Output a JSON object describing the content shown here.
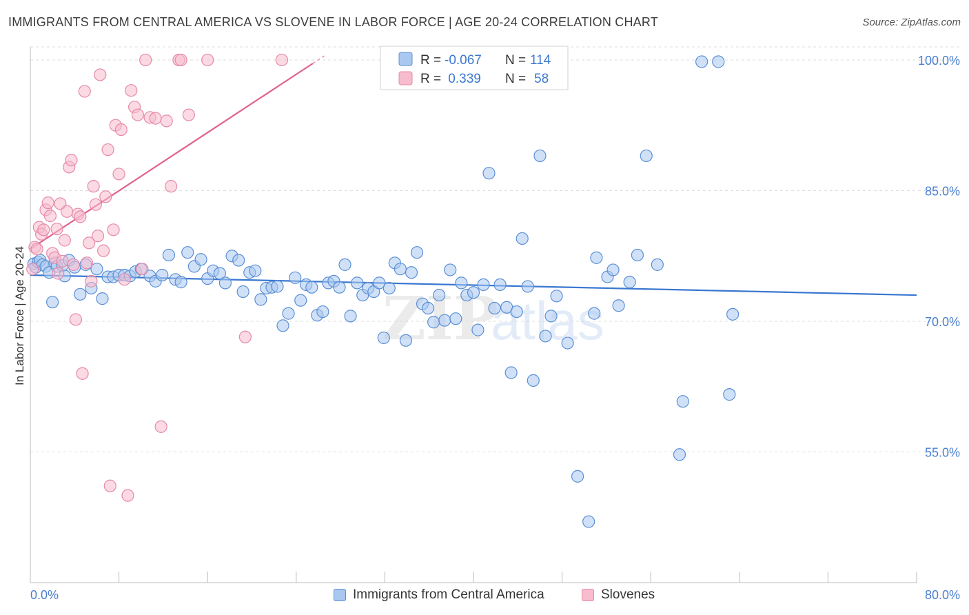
{
  "title": "IMMIGRANTS FROM CENTRAL AMERICA VS SLOVENE IN LABOR FORCE | AGE 20-24 CORRELATION CHART",
  "source": "Source: ZipAtlas.com",
  "watermark": {
    "zip": "ZIP",
    "atlas": "atlas"
  },
  "colors": {
    "blue_fill": "#a9c8f0",
    "blue_stroke": "#5b8fd6",
    "blue_line": "#3a78d0",
    "pink_fill": "#f7bccd",
    "pink_stroke": "#e58aa8",
    "pink_line": "#e0628e",
    "tick": "#4a7fd0",
    "grid": "#dddddd"
  },
  "legend_top": {
    "rows": [
      {
        "r_label": "R =",
        "r_value": "-0.067",
        "n_label": "N =",
        "n_value": "114"
      },
      {
        "r_label": "R =",
        "r_value": " 0.339",
        "n_label": "N =",
        "n_value": "58"
      }
    ]
  },
  "chart_data": {
    "type": "scatter",
    "title": "IMMIGRANTS FROM CENTRAL AMERICA VS SLOVENE IN LABOR FORCE | AGE 20-24 CORRELATION CHART",
    "xlabel": "",
    "ylabel": "In Labor Force | Age 20-24",
    "xlim": [
      0,
      80
    ],
    "ylim": [
      40,
      101.5
    ],
    "x_tick_labels": [
      "0.0%",
      "80.0%"
    ],
    "y_ticks": [
      100,
      85,
      70,
      55
    ],
    "y_tick_labels": [
      "100.0%",
      "85.0%",
      "70.0%",
      "55.0%"
    ],
    "grid": true,
    "legend_placement": "bottom-center",
    "series": [
      {
        "name": "Immigrants from Central America",
        "r": -0.067,
        "n": 114,
        "trend": {
          "x0": 0,
          "y0": 75.3,
          "x1": 80,
          "y1": 73.0
        },
        "points": [
          [
            0.3,
            76.6
          ],
          [
            0.5,
            76.2
          ],
          [
            0.7,
            76.8
          ],
          [
            0.9,
            77.0
          ],
          [
            1.1,
            76.5
          ],
          [
            1.4,
            76.3
          ],
          [
            1.7,
            75.6
          ],
          [
            2.0,
            72.2
          ],
          [
            2.2,
            76.7
          ],
          [
            2.4,
            76.3
          ],
          [
            2.9,
            76.4
          ],
          [
            3.1,
            75.2
          ],
          [
            3.5,
            77.0
          ],
          [
            4.0,
            76.2
          ],
          [
            4.5,
            73.1
          ],
          [
            5.0,
            76.5
          ],
          [
            5.5,
            73.8
          ],
          [
            6.0,
            76.0
          ],
          [
            6.5,
            72.6
          ],
          [
            7.0,
            75.1
          ],
          [
            7.5,
            75.1
          ],
          [
            8.0,
            75.3
          ],
          [
            8.5,
            75.3
          ],
          [
            9.0,
            75.2
          ],
          [
            9.5,
            75.7
          ],
          [
            10.0,
            76.0
          ],
          [
            10.8,
            75.2
          ],
          [
            11.3,
            74.6
          ],
          [
            11.9,
            75.3
          ],
          [
            12.5,
            77.6
          ],
          [
            13.1,
            74.8
          ],
          [
            13.6,
            74.5
          ],
          [
            14.2,
            77.9
          ],
          [
            14.8,
            76.3
          ],
          [
            15.4,
            77.1
          ],
          [
            16.0,
            74.9
          ],
          [
            16.5,
            75.8
          ],
          [
            17.1,
            75.5
          ],
          [
            17.6,
            74.4
          ],
          [
            18.2,
            77.5
          ],
          [
            18.8,
            77.0
          ],
          [
            19.2,
            73.4
          ],
          [
            19.8,
            75.6
          ],
          [
            20.3,
            75.8
          ],
          [
            20.8,
            72.5
          ],
          [
            21.3,
            73.8
          ],
          [
            21.8,
            73.9
          ],
          [
            22.3,
            74.0
          ],
          [
            22.8,
            69.5
          ],
          [
            23.3,
            70.9
          ],
          [
            23.9,
            75.0
          ],
          [
            24.4,
            72.4
          ],
          [
            24.9,
            74.2
          ],
          [
            25.4,
            73.9
          ],
          [
            25.9,
            70.7
          ],
          [
            26.4,
            71.1
          ],
          [
            26.9,
            74.4
          ],
          [
            27.4,
            74.6
          ],
          [
            27.9,
            73.9
          ],
          [
            28.4,
            76.5
          ],
          [
            28.9,
            70.6
          ],
          [
            29.5,
            74.4
          ],
          [
            30.0,
            73.0
          ],
          [
            30.5,
            73.8
          ],
          [
            31.0,
            73.4
          ],
          [
            31.5,
            74.4
          ],
          [
            31.9,
            68.1
          ],
          [
            32.4,
            73.8
          ],
          [
            32.9,
            76.7
          ],
          [
            33.4,
            76.0
          ],
          [
            33.9,
            67.8
          ],
          [
            34.4,
            75.6
          ],
          [
            34.9,
            77.9
          ],
          [
            35.4,
            72.0
          ],
          [
            35.9,
            71.5
          ],
          [
            36.4,
            69.9
          ],
          [
            36.9,
            73.0
          ],
          [
            37.4,
            70.1
          ],
          [
            37.9,
            75.9
          ],
          [
            38.4,
            70.3
          ],
          [
            38.9,
            74.4
          ],
          [
            39.4,
            73.0
          ],
          [
            40.0,
            73.3
          ],
          [
            40.4,
            69.0
          ],
          [
            40.9,
            74.2
          ],
          [
            41.4,
            87.0
          ],
          [
            41.9,
            71.5
          ],
          [
            42.4,
            74.2
          ],
          [
            43.0,
            71.6
          ],
          [
            43.4,
            64.1
          ],
          [
            43.9,
            71.1
          ],
          [
            44.4,
            79.5
          ],
          [
            44.9,
            74.0
          ],
          [
            45.4,
            63.2
          ],
          [
            46.0,
            89.0
          ],
          [
            46.5,
            68.3
          ],
          [
            47.0,
            70.6
          ],
          [
            47.5,
            72.9
          ],
          [
            47.9,
            99.8
          ],
          [
            48.5,
            67.5
          ],
          [
            49.4,
            52.2
          ],
          [
            50.4,
            47.0
          ],
          [
            50.9,
            70.9
          ],
          [
            51.1,
            77.3
          ],
          [
            52.1,
            75.1
          ],
          [
            52.6,
            75.9
          ],
          [
            53.1,
            71.8
          ],
          [
            54.1,
            74.5
          ],
          [
            54.8,
            77.6
          ],
          [
            55.6,
            89.0
          ],
          [
            56.6,
            76.5
          ],
          [
            58.6,
            54.7
          ],
          [
            58.9,
            60.8
          ],
          [
            60.6,
            99.8
          ],
          [
            62.1,
            99.8
          ],
          [
            63.1,
            61.6
          ],
          [
            63.4,
            70.8
          ]
        ]
      },
      {
        "name": "Slovenes",
        "r": 0.339,
        "n": 58,
        "trend": {
          "x0": 0,
          "y0": 78.3,
          "x1": 25.5,
          "y1": 99.6
        },
        "points": [
          [
            0.2,
            76.0
          ],
          [
            0.4,
            78.5
          ],
          [
            0.6,
            78.3
          ],
          [
            0.8,
            80.8
          ],
          [
            1.0,
            80.0
          ],
          [
            1.2,
            80.5
          ],
          [
            1.4,
            82.8
          ],
          [
            1.6,
            83.6
          ],
          [
            1.8,
            82.1
          ],
          [
            2.0,
            77.8
          ],
          [
            2.2,
            77.3
          ],
          [
            2.4,
            80.6
          ],
          [
            2.5,
            75.5
          ],
          [
            2.7,
            83.5
          ],
          [
            2.9,
            76.9
          ],
          [
            3.1,
            79.3
          ],
          [
            3.3,
            82.6
          ],
          [
            3.5,
            87.7
          ],
          [
            3.7,
            88.5
          ],
          [
            3.9,
            76.5
          ],
          [
            4.1,
            70.2
          ],
          [
            4.3,
            82.3
          ],
          [
            4.5,
            82.0
          ],
          [
            4.7,
            64.0
          ],
          [
            4.9,
            96.4
          ],
          [
            5.1,
            76.7
          ],
          [
            5.3,
            79.0
          ],
          [
            5.5,
            74.6
          ],
          [
            5.7,
            85.5
          ],
          [
            5.9,
            83.4
          ],
          [
            6.1,
            79.8
          ],
          [
            6.3,
            98.3
          ],
          [
            6.6,
            78.1
          ],
          [
            6.8,
            84.3
          ],
          [
            7.0,
            89.7
          ],
          [
            7.2,
            51.1
          ],
          [
            7.5,
            80.5
          ],
          [
            7.7,
            92.5
          ],
          [
            8.0,
            86.9
          ],
          [
            8.2,
            92.0
          ],
          [
            8.5,
            74.8
          ],
          [
            8.8,
            50.0
          ],
          [
            9.1,
            96.5
          ],
          [
            9.4,
            94.6
          ],
          [
            9.7,
            93.7
          ],
          [
            10.1,
            76.0
          ],
          [
            10.4,
            100.0
          ],
          [
            10.8,
            93.4
          ],
          [
            11.3,
            93.3
          ],
          [
            11.8,
            57.9
          ],
          [
            12.3,
            93.0
          ],
          [
            12.7,
            85.5
          ],
          [
            13.4,
            100.0
          ],
          [
            13.6,
            100.0
          ],
          [
            14.3,
            93.7
          ],
          [
            16.0,
            100.0
          ],
          [
            19.4,
            68.2
          ],
          [
            22.7,
            100.0
          ]
        ]
      }
    ]
  },
  "bottom_legend": {
    "item1": "Immigrants from Central America",
    "item2": "Slovenes"
  }
}
